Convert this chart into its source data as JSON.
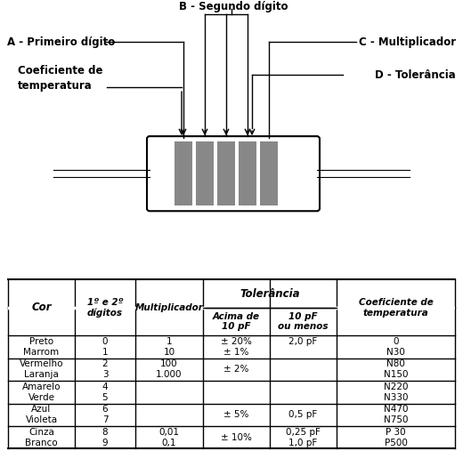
{
  "labels": {
    "A": "A - Primeiro dígito",
    "B": "B - Segundo dígito",
    "C": "C - Multiplicador",
    "D": "D - Tolerância",
    "coef_line1": "Coeficiente de",
    "coef_line2": "temperatura"
  },
  "tolerancia_header": "Tolerância",
  "rows": [
    [
      "Preto\nMarrom",
      "0\n1",
      "1\n10",
      "± 20%\n± 1%",
      "2,0 pF\n",
      "0\nN30"
    ],
    [
      "Vermelho\nLaranja",
      "2\n3",
      "100\n1.000",
      "± 2%",
      "",
      "N80\nN150"
    ],
    [
      "Amarelo\nVerde",
      "4\n5",
      "",
      "",
      "",
      "N220\nN330"
    ],
    [
      "Azul\nVioleta",
      "6\n7",
      "",
      "± 5%",
      "0,5 pF",
      "N470\nN750"
    ],
    [
      "Cinza\nBranco",
      "8\n9",
      "0,01\n0,1",
      "± 10%",
      "0,25 pF\n1,0 pF",
      "P 30\nP500"
    ]
  ],
  "band_color": "#888888",
  "body_facecolor": "#ffffff",
  "fig_bg": "#ffffff"
}
